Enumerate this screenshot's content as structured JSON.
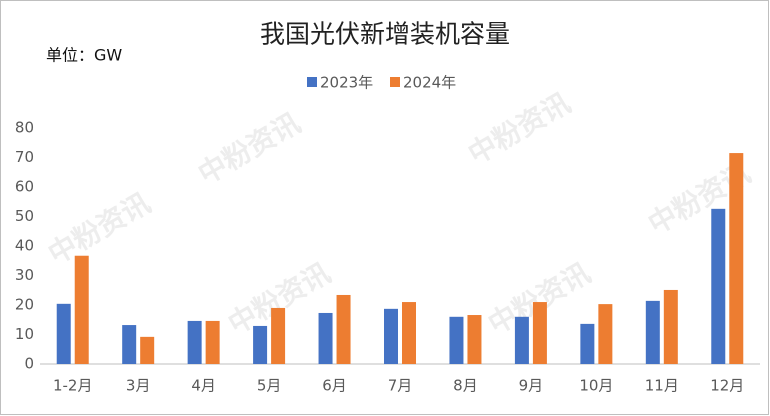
{
  "chart_data": {
    "type": "bar",
    "title": "我国光伏新增装机容量",
    "unit_label": "单位：GW",
    "watermark": "中粉资讯",
    "categories": [
      "1-2月",
      "3月",
      "4月",
      "5月",
      "6月",
      "7月",
      "8月",
      "9月",
      "10月",
      "11月",
      "12月"
    ],
    "series": [
      {
        "name": "2023年",
        "color": "#4472c4",
        "values": [
          20.4,
          13.2,
          14.6,
          12.9,
          17.3,
          18.7,
          16.0,
          16.0,
          13.6,
          21.4,
          52.6
        ]
      },
      {
        "name": "2024年",
        "color": "#ed7d31",
        "values": [
          36.7,
          9.2,
          14.6,
          19.0,
          23.4,
          21.0,
          16.6,
          21.0,
          20.3,
          25.1,
          71.5
        ]
      }
    ],
    "ylim": [
      0,
      80
    ],
    "yticks": [
      0,
      10,
      20,
      30,
      40,
      50,
      60,
      70,
      80
    ],
    "grid": false
  }
}
